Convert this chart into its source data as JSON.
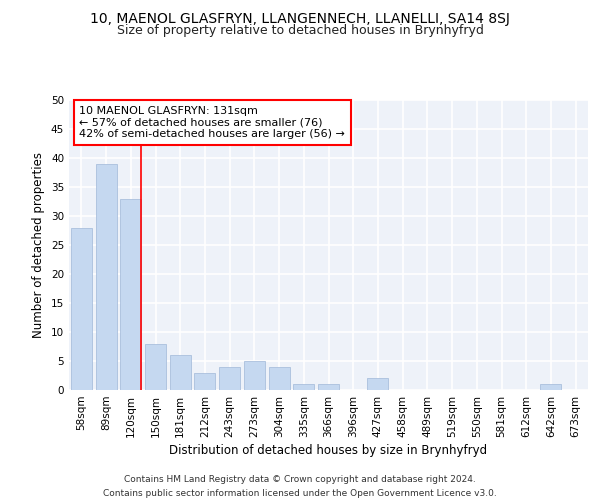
{
  "title1": "10, MAENOL GLASFRYN, LLANGENNECH, LLANELLI, SA14 8SJ",
  "title2": "Size of property relative to detached houses in Brynhyfryd",
  "xlabel": "Distribution of detached houses by size in Brynhyfryd",
  "ylabel": "Number of detached properties",
  "categories": [
    "58sqm",
    "89sqm",
    "120sqm",
    "150sqm",
    "181sqm",
    "212sqm",
    "243sqm",
    "273sqm",
    "304sqm",
    "335sqm",
    "366sqm",
    "396sqm",
    "427sqm",
    "458sqm",
    "489sqm",
    "519sqm",
    "550sqm",
    "581sqm",
    "612sqm",
    "642sqm",
    "673sqm"
  ],
  "values": [
    28,
    39,
    33,
    8,
    6,
    3,
    4,
    5,
    4,
    1,
    1,
    0,
    2,
    0,
    0,
    0,
    0,
    0,
    0,
    1,
    0
  ],
  "bar_color": "#c5d8f0",
  "bar_edge_color": "#a0b8d8",
  "vline_index": 2,
  "vline_color": "red",
  "annotation_text": "10 MAENOL GLASFRYN: 131sqm\n← 57% of detached houses are smaller (76)\n42% of semi-detached houses are larger (56) →",
  "annotation_box_color": "white",
  "annotation_box_edge_color": "red",
  "ylim": [
    0,
    50
  ],
  "yticks": [
    0,
    5,
    10,
    15,
    20,
    25,
    30,
    35,
    40,
    45,
    50
  ],
  "footer": "Contains HM Land Registry data © Crown copyright and database right 2024.\nContains public sector information licensed under the Open Government Licence v3.0.",
  "background_color": "#eef2f9",
  "grid_color": "white",
  "title_fontsize": 10,
  "subtitle_fontsize": 9,
  "axis_label_fontsize": 8.5,
  "tick_fontsize": 7.5,
  "annotation_fontsize": 8,
  "footer_fontsize": 6.5
}
